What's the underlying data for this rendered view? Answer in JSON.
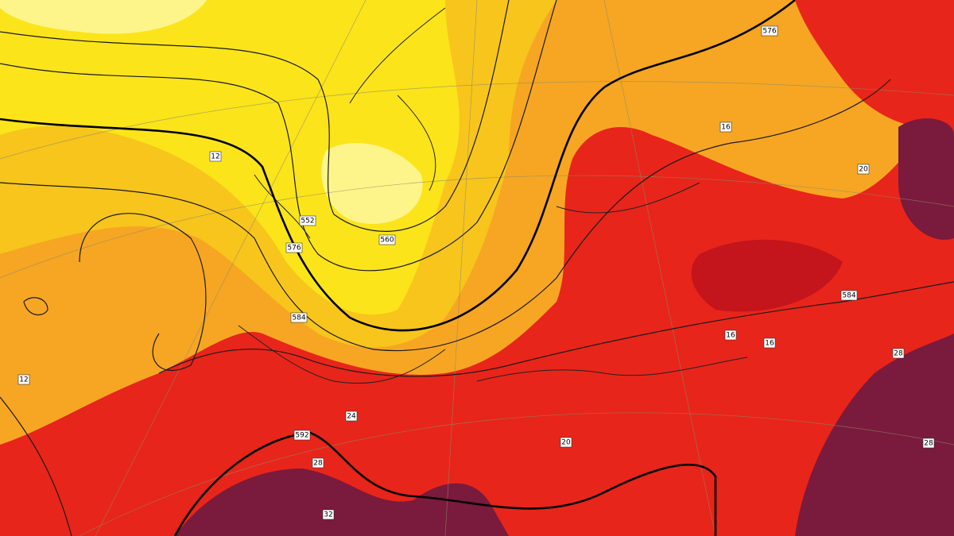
{
  "map": {
    "labels": [
      {
        "text": "576"
      },
      {
        "text": "584"
      },
      {
        "text": "592"
      },
      {
        "text": "560"
      },
      {
        "text": "584"
      },
      {
        "text": "552"
      },
      {
        "text": "576"
      },
      {
        "text": "20"
      },
      {
        "text": "28"
      },
      {
        "text": "16"
      },
      {
        "text": "24"
      },
      {
        "text": "20"
      },
      {
        "text": "28"
      },
      {
        "text": "32"
      },
      {
        "text": "28"
      },
      {
        "text": "12"
      },
      {
        "text": "12"
      },
      {
        "text": "16"
      },
      {
        "text": "16"
      }
    ]
  }
}
